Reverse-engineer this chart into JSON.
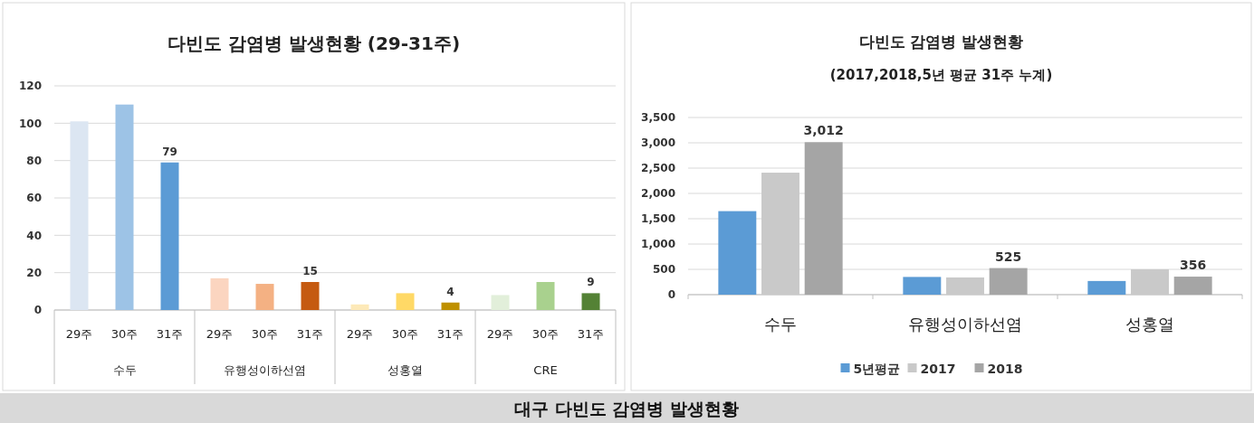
{
  "chart_data": [
    {
      "type": "bar",
      "title": "다빈도 감염병 발생현황 (29-31주)",
      "categories": [
        "수두",
        "유행성이하선염",
        "성홍열",
        "CRE"
      ],
      "series": [
        {
          "name": "29주",
          "colors": [
            "#dce6f2",
            "#fbd5c0",
            "#fde9b8",
            "#e2efda"
          ],
          "values": [
            101,
            17,
            3,
            8
          ],
          "value_labels": [
            null,
            null,
            null,
            null
          ]
        },
        {
          "name": "30주",
          "colors": [
            "#9dc3e6",
            "#f4b183",
            "#ffd966",
            "#a9d18e"
          ],
          "values": [
            110,
            14,
            9,
            15
          ],
          "value_labels": [
            null,
            null,
            null,
            null
          ]
        },
        {
          "name": "31주",
          "colors": [
            "#5b9bd5",
            "#c55a11",
            "#bf9000",
            "#548235"
          ],
          "values": [
            79,
            15,
            4,
            9
          ],
          "value_labels": [
            "79",
            "15",
            "4",
            "9"
          ]
        }
      ],
      "ylim": [
        0,
        120
      ],
      "yticks": [
        0,
        20,
        40,
        60,
        80,
        100,
        120
      ],
      "grid": "y"
    },
    {
      "type": "bar",
      "title": "다빈도 감염병 발생현황",
      "subtitle": "(2017,2018,5년 평균 31주 누계)",
      "categories": [
        "수두",
        "유행성이하선염",
        "성홍열"
      ],
      "series": [
        {
          "name": "5년평균",
          "color": "#5b9bd5",
          "values": [
            1650,
            350,
            270
          ]
        },
        {
          "name": "2017",
          "color": "#c9c9c9",
          "values": [
            2410,
            340,
            500
          ]
        },
        {
          "name": "2018",
          "color": "#a5a5a5",
          "values": [
            3012,
            525,
            356
          ],
          "value_labels": [
            "3,012",
            "525",
            "356"
          ]
        }
      ],
      "ylim": [
        0,
        3500
      ],
      "yticks": [
        0,
        500,
        {
          "value": 1000,
          "label": "1,000"
        },
        {
          "value": 1500,
          "label": "1,500"
        },
        {
          "value": 2000,
          "label": "2,000"
        },
        {
          "value": 2500,
          "label": "2,500"
        },
        {
          "value": 3000,
          "label": "3,000"
        },
        {
          "value": 3500,
          "label": "3,500"
        }
      ],
      "grid": "y",
      "legend": "bottom"
    },
    {
      "type": "other",
      "title": "대구 다빈도 감염병 발생현황"
    }
  ]
}
